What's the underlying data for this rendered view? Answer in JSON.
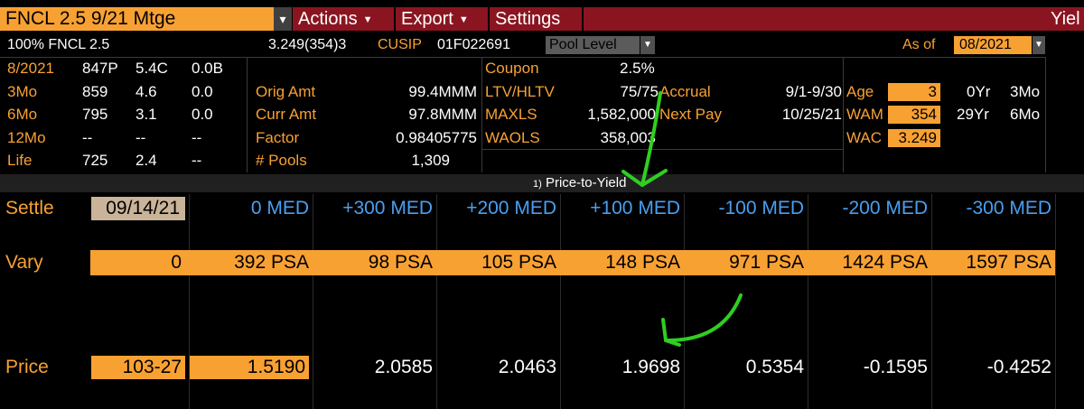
{
  "toolbar": {
    "security": "FNCL 2.5 9/21 Mtge",
    "dropdown_glyph": "▾",
    "actions": "Actions",
    "export": "Export",
    "settings": "Settings",
    "yield_fragment": "Yiel"
  },
  "header": {
    "description": "100% FNCL 2.5",
    "code": "3.249(354)3",
    "cusip_label": "CUSIP",
    "cusip_value": "01F022691",
    "pool_level": "Pool Level",
    "as_of_label": "As of",
    "as_of_value": "08/2021"
  },
  "prepay": [
    {
      "label": "8/2021",
      "c1": "847P",
      "c2": "5.4C",
      "c3": "0.0B"
    },
    {
      "label": "3Mo",
      "c1": "859",
      "c2": "4.6",
      "c3": "0.0"
    },
    {
      "label": "6Mo",
      "c1": "795",
      "c2": "3.1",
      "c3": "0.0"
    },
    {
      "label": "12Mo",
      "c1": "--",
      "c2": "--",
      "c3": "--"
    },
    {
      "label": "Life",
      "c1": "725",
      "c2": "2.4",
      "c3": "--"
    }
  ],
  "amounts": [
    {
      "label": "Orig Amt",
      "value": "99.4MMM"
    },
    {
      "label": "Curr Amt",
      "value": "97.8MMM"
    },
    {
      "label": "Factor",
      "value": "0.98405775"
    },
    {
      "label": "# Pools",
      "value": "1,309"
    }
  ],
  "pool_stats": [
    {
      "label": "Coupon",
      "value": "2.5%"
    },
    {
      "label": "LTV/HLTV",
      "value": "75/75"
    },
    {
      "label": "MAXLS",
      "value": "1,582,000"
    },
    {
      "label": "WAOLS",
      "value": "358,003"
    }
  ],
  "dates": [
    {
      "label": "Accrual",
      "value": "9/1-9/30"
    },
    {
      "label": "Next Pay",
      "value": "10/25/21"
    }
  ],
  "wa": {
    "age_label": "Age",
    "age_value": "3",
    "wam_label": "WAM",
    "wam_value": "354",
    "wac_label": "WAC",
    "wac_value": "3.249",
    "yr1": "0Yr",
    "mo1": "3Mo",
    "yr2": "29Yr",
    "mo2": "6Mo"
  },
  "section": {
    "number": "1)",
    "title": "Price-to-Yield"
  },
  "settle": {
    "label": "Settle",
    "value": "09/14/21"
  },
  "scenarios": [
    "0 MED",
    "+300 MED",
    "+200 MED",
    "+100 MED",
    "-100 MED",
    "-200 MED",
    "-300 MED"
  ],
  "vary": {
    "label": "Vary",
    "input": "0",
    "values": [
      "392 PSA",
      "98 PSA",
      "105 PSA",
      "148 PSA",
      "971 PSA",
      "1424 PSA",
      "1597 PSA"
    ]
  },
  "price": {
    "label": "Price",
    "input": "103-27",
    "values": [
      "1.5190",
      "2.0585",
      "2.0463",
      "1.9698",
      "0.5354",
      "-0.1595",
      "-0.4252"
    ]
  },
  "annotation_color": "#2fcf1f"
}
